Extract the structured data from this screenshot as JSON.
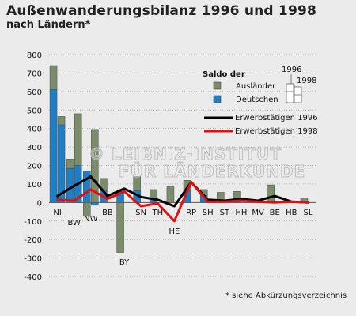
{
  "chart_data": {
    "type": "bar",
    "title": "Außenwanderungsbilanz 1996 und 1998",
    "subtitle": "nach Ländern*",
    "ylim": [
      -400,
      800
    ],
    "yticks": [
      800,
      700,
      600,
      500,
      400,
      300,
      200,
      100,
      0,
      -100,
      -200,
      -300,
      -400
    ],
    "categories": [
      "NI",
      "BW",
      "NW",
      "BB",
      "BY",
      "SN",
      "TH",
      "HE",
      "RP",
      "SH",
      "ST",
      "HH",
      "MV",
      "BE",
      "HB",
      "SL"
    ],
    "series": [
      {
        "name": "Ausländer",
        "year": "1996",
        "values": [
          130,
          50,
          -75,
          65,
          -270,
          75,
          45,
          85,
          55,
          30,
          40,
          35,
          15,
          90,
          5,
          25
        ]
      },
      {
        "name": "Deutschen",
        "year": "1996",
        "values": [
          610,
          185,
          170,
          65,
          60,
          65,
          25,
          0,
          65,
          40,
          15,
          25,
          0,
          5,
          0,
          0
        ]
      },
      {
        "name": "Ausländer",
        "year": "1998",
        "values": [
          45,
          280,
          395,
          0,
          0,
          0,
          0,
          0,
          0,
          0,
          0,
          0,
          0,
          0,
          0,
          0
        ]
      },
      {
        "name": "Deutschen",
        "year": "1998",
        "values": [
          420,
          200,
          -15,
          0,
          0,
          0,
          0,
          0,
          0,
          0,
          0,
          0,
          0,
          0,
          0,
          0
        ]
      },
      {
        "name": "Erwerbstätigen 1996",
        "type": "line",
        "values": [
          35,
          90,
          140,
          35,
          75,
          30,
          15,
          -20,
          110,
          15,
          10,
          20,
          10,
          35,
          5,
          0
        ]
      },
      {
        "name": "Erwerbstätigen 1998",
        "type": "line",
        "values": [
          15,
          10,
          70,
          20,
          60,
          -20,
          -5,
          -100,
          110,
          5,
          5,
          10,
          5,
          0,
          5,
          0
        ]
      }
    ],
    "legend": {
      "heading": "Saldo der",
      "items": [
        "Ausländer",
        "Deutschen",
        "Erwerbstätigen 1996",
        "Erwerbstätigen 1998"
      ],
      "year_labels": [
        "1996",
        "1998"
      ],
      "placement": "top-right"
    },
    "colors": {
      "auslaender": "#7a8c6a",
      "deutsche": "#1f7fc4",
      "line1996": "#000000",
      "line1998": "#e01010"
    },
    "grid": "dotted"
  },
  "footnote": "* siehe Abkürzungsverzeichnis",
  "watermark": [
    "© LEIBNIZ-INSTITUT",
    "FÜR LÄNDERKUNDE"
  ]
}
